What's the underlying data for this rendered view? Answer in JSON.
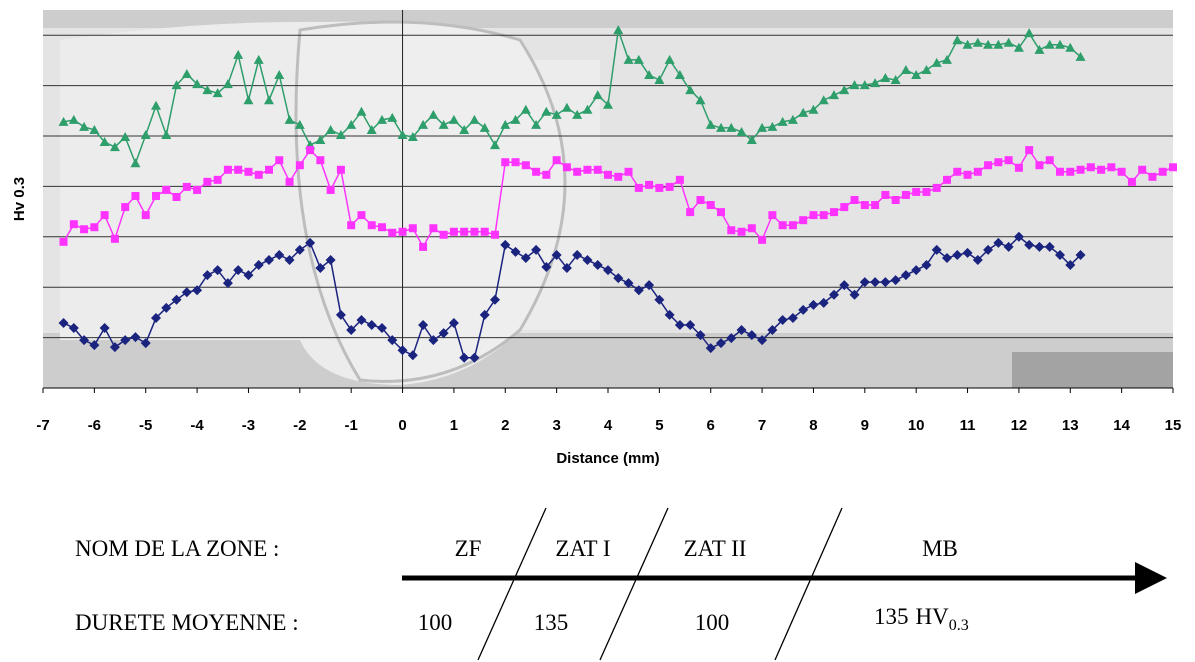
{
  "chart_data": {
    "type": "line",
    "x_label": "Distance (mm)",
    "y_label": "Hv 0.3",
    "xlim": [
      -7,
      15
    ],
    "ylim": [
      0,
      7.5
    ],
    "xticks": [
      -7,
      -6,
      -5,
      -4,
      -3,
      -2,
      -1,
      0,
      1,
      2,
      3,
      4,
      5,
      6,
      7,
      8,
      9,
      10,
      11,
      12,
      13,
      14,
      15
    ],
    "yticks": [
      1,
      2,
      3,
      4,
      5,
      6,
      7
    ],
    "grid": true,
    "x": [
      -6.6,
      -6.4,
      -6.2,
      -6.0,
      -5.8,
      -5.6,
      -5.4,
      -5.2,
      -5.0,
      -4.8,
      -4.6,
      -4.4,
      -4.2,
      -4.0,
      -3.8,
      -3.6,
      -3.4,
      -3.2,
      -3.0,
      -2.8,
      -2.6,
      -2.4,
      -2.2,
      -2.0,
      -1.8,
      -1.6,
      -1.4,
      -1.2,
      -1.0,
      -0.8,
      -0.6,
      -0.4,
      -0.2,
      0.0,
      0.2,
      0.4,
      0.6,
      0.8,
      1.0,
      1.2,
      1.4,
      1.6,
      1.8,
      2.0,
      2.2,
      2.4,
      2.6,
      2.8,
      3.0,
      3.2,
      3.4,
      3.6,
      3.8,
      4.0,
      4.2,
      4.4,
      4.6,
      4.8,
      5.0,
      5.2,
      5.4,
      5.6,
      5.8,
      6.0,
      6.2,
      6.4,
      6.6,
      6.8,
      7.0,
      7.2,
      7.4,
      7.6,
      7.8,
      8.0,
      8.2,
      8.4,
      8.6,
      8.8,
      9.0,
      9.2,
      9.4,
      9.6,
      9.8,
      10.0,
      10.2,
      10.4,
      10.6,
      10.8,
      11.0,
      11.2,
      11.4,
      11.6,
      11.8,
      12.0,
      12.2,
      12.4,
      12.6,
      12.8,
      13.0,
      13.2,
      13.4,
      13.6,
      13.8,
      14.0,
      14.2,
      14.4,
      14.6,
      14.8,
      15.0
    ],
    "series": [
      {
        "color": "#2e9e6b",
        "marker": "triangle",
        "values": [
          5.28,
          5.32,
          5.18,
          5.12,
          4.88,
          4.78,
          4.98,
          4.46,
          5.02,
          5.6,
          5.02,
          6.01,
          6.23,
          6.03,
          5.91,
          5.85,
          6.03,
          6.61,
          5.71,
          6.51,
          5.71,
          6.21,
          5.32,
          5.22,
          4.82,
          4.92,
          5.12,
          5.02,
          5.22,
          5.48,
          5.12,
          5.32,
          5.36,
          5.02,
          4.98,
          5.22,
          5.42,
          5.22,
          5.32,
          5.12,
          5.32,
          5.16,
          4.82,
          5.22,
          5.32,
          5.52,
          5.22,
          5.48,
          5.42,
          5.56,
          5.42,
          5.52,
          5.81,
          5.62,
          7.1,
          6.51,
          6.51,
          6.21,
          6.11,
          6.51,
          6.21,
          5.91,
          5.71,
          5.22,
          5.16,
          5.16,
          5.08,
          4.92,
          5.16,
          5.18,
          5.28,
          5.32,
          5.46,
          5.52,
          5.71,
          5.81,
          5.91,
          6.01,
          6.01,
          6.05,
          6.15,
          6.11,
          6.31,
          6.21,
          6.31,
          6.45,
          6.51,
          6.9,
          6.81,
          6.85,
          6.81,
          6.81,
          6.85,
          6.75,
          7.04,
          6.71,
          6.81,
          6.81,
          6.75,
          6.57,
          null,
          null,
          null,
          null,
          null,
          null,
          null,
          null,
          null
        ]
      },
      {
        "color": "#ff33ff",
        "marker": "square",
        "values": [
          2.9,
          3.25,
          3.15,
          3.19,
          3.43,
          2.96,
          3.59,
          3.81,
          3.43,
          3.81,
          3.93,
          3.79,
          3.99,
          3.93,
          4.09,
          4.13,
          4.33,
          4.33,
          4.29,
          4.23,
          4.33,
          4.52,
          4.09,
          4.42,
          4.72,
          4.52,
          3.93,
          4.33,
          3.23,
          3.43,
          3.23,
          3.19,
          3.08,
          3.1,
          3.17,
          2.8,
          3.17,
          3.04,
          3.1,
          3.1,
          3.1,
          3.1,
          3.04,
          4.48,
          4.48,
          4.42,
          4.29,
          4.23,
          4.52,
          4.38,
          4.29,
          4.33,
          4.33,
          4.23,
          4.19,
          4.29,
          3.97,
          4.03,
          3.97,
          3.99,
          4.13,
          3.49,
          3.73,
          3.63,
          3.49,
          3.13,
          3.1,
          3.17,
          2.94,
          3.43,
          3.23,
          3.23,
          3.33,
          3.43,
          3.43,
          3.49,
          3.59,
          3.73,
          3.63,
          3.63,
          3.83,
          3.73,
          3.83,
          3.89,
          3.89,
          3.97,
          4.13,
          4.29,
          4.23,
          4.29,
          4.42,
          4.48,
          4.52,
          4.37,
          4.72,
          4.42,
          4.52,
          4.29,
          4.29,
          4.33,
          4.38,
          4.33,
          4.38,
          4.29,
          4.09,
          4.33,
          4.19,
          4.29,
          4.38
        ]
      },
      {
        "color": "#1a237e",
        "marker": "diamond",
        "values": [
          1.29,
          1.19,
          0.95,
          0.85,
          1.19,
          0.81,
          0.95,
          1.01,
          0.89,
          1.39,
          1.59,
          1.75,
          1.9,
          1.94,
          2.24,
          2.34,
          2.08,
          2.34,
          2.24,
          2.44,
          2.54,
          2.64,
          2.54,
          2.74,
          2.88,
          2.38,
          2.54,
          1.45,
          1.15,
          1.35,
          1.25,
          1.19,
          0.95,
          0.75,
          0.65,
          1.25,
          0.95,
          1.09,
          1.29,
          0.6,
          0.6,
          1.45,
          1.75,
          2.84,
          2.7,
          2.58,
          2.74,
          2.4,
          2.64,
          2.38,
          2.64,
          2.54,
          2.44,
          2.34,
          2.18,
          2.08,
          1.94,
          2.04,
          1.75,
          1.45,
          1.25,
          1.25,
          1.05,
          0.79,
          0.89,
          0.99,
          1.15,
          1.05,
          0.95,
          1.15,
          1.35,
          1.39,
          1.55,
          1.65,
          1.69,
          1.85,
          2.04,
          1.85,
          2.1,
          2.1,
          2.1,
          2.14,
          2.24,
          2.34,
          2.44,
          2.74,
          2.58,
          2.64,
          2.68,
          2.54,
          2.74,
          2.88,
          2.8,
          3.0,
          2.84,
          2.8,
          2.8,
          2.64,
          2.44,
          2.64,
          null,
          null,
          null,
          null,
          null,
          null,
          null,
          null,
          null
        ]
      }
    ]
  },
  "zones": {
    "label": "NOM DE LA ZONE :",
    "names": [
      "ZF",
      "ZAT I",
      "ZAT II",
      "MB"
    ]
  },
  "hardness": {
    "label": "DURETE MOYENNE :",
    "values": [
      "100",
      "135",
      "100",
      "135"
    ],
    "unit": "HV",
    "unit_sub": "0.3"
  }
}
